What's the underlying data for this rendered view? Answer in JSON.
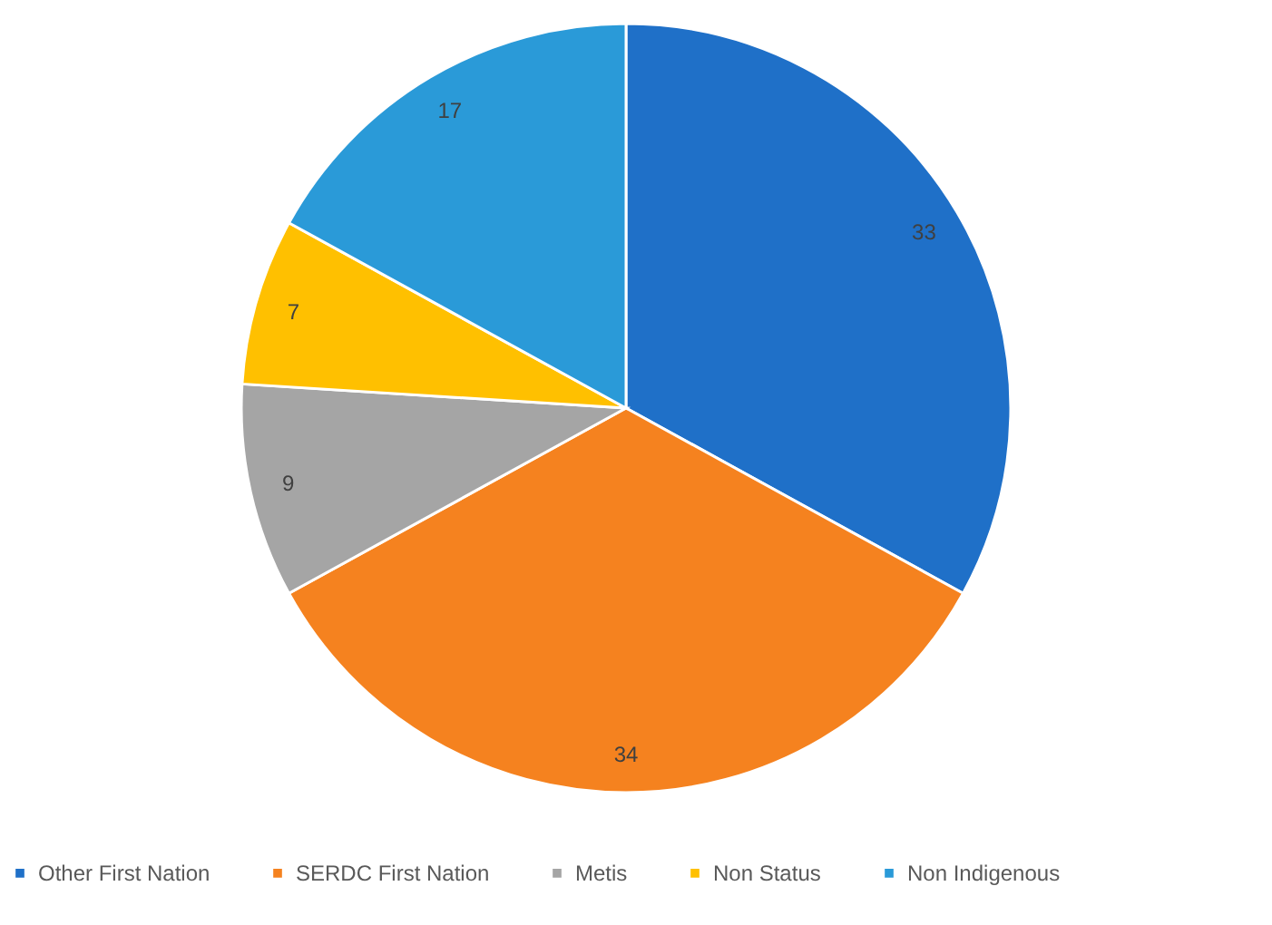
{
  "chart_data": {
    "type": "pie",
    "categories": [
      "Other First Nation",
      "SERDC First Nation",
      "Metis",
      "Non Status",
      "Non Indigenous"
    ],
    "values": [
      33,
      34,
      9,
      7,
      17
    ],
    "colors": [
      "#1f70c8",
      "#f5821f",
      "#a5a5a5",
      "#ffc000",
      "#2a9ad8"
    ],
    "data_labels": true,
    "legend": "bottom"
  }
}
